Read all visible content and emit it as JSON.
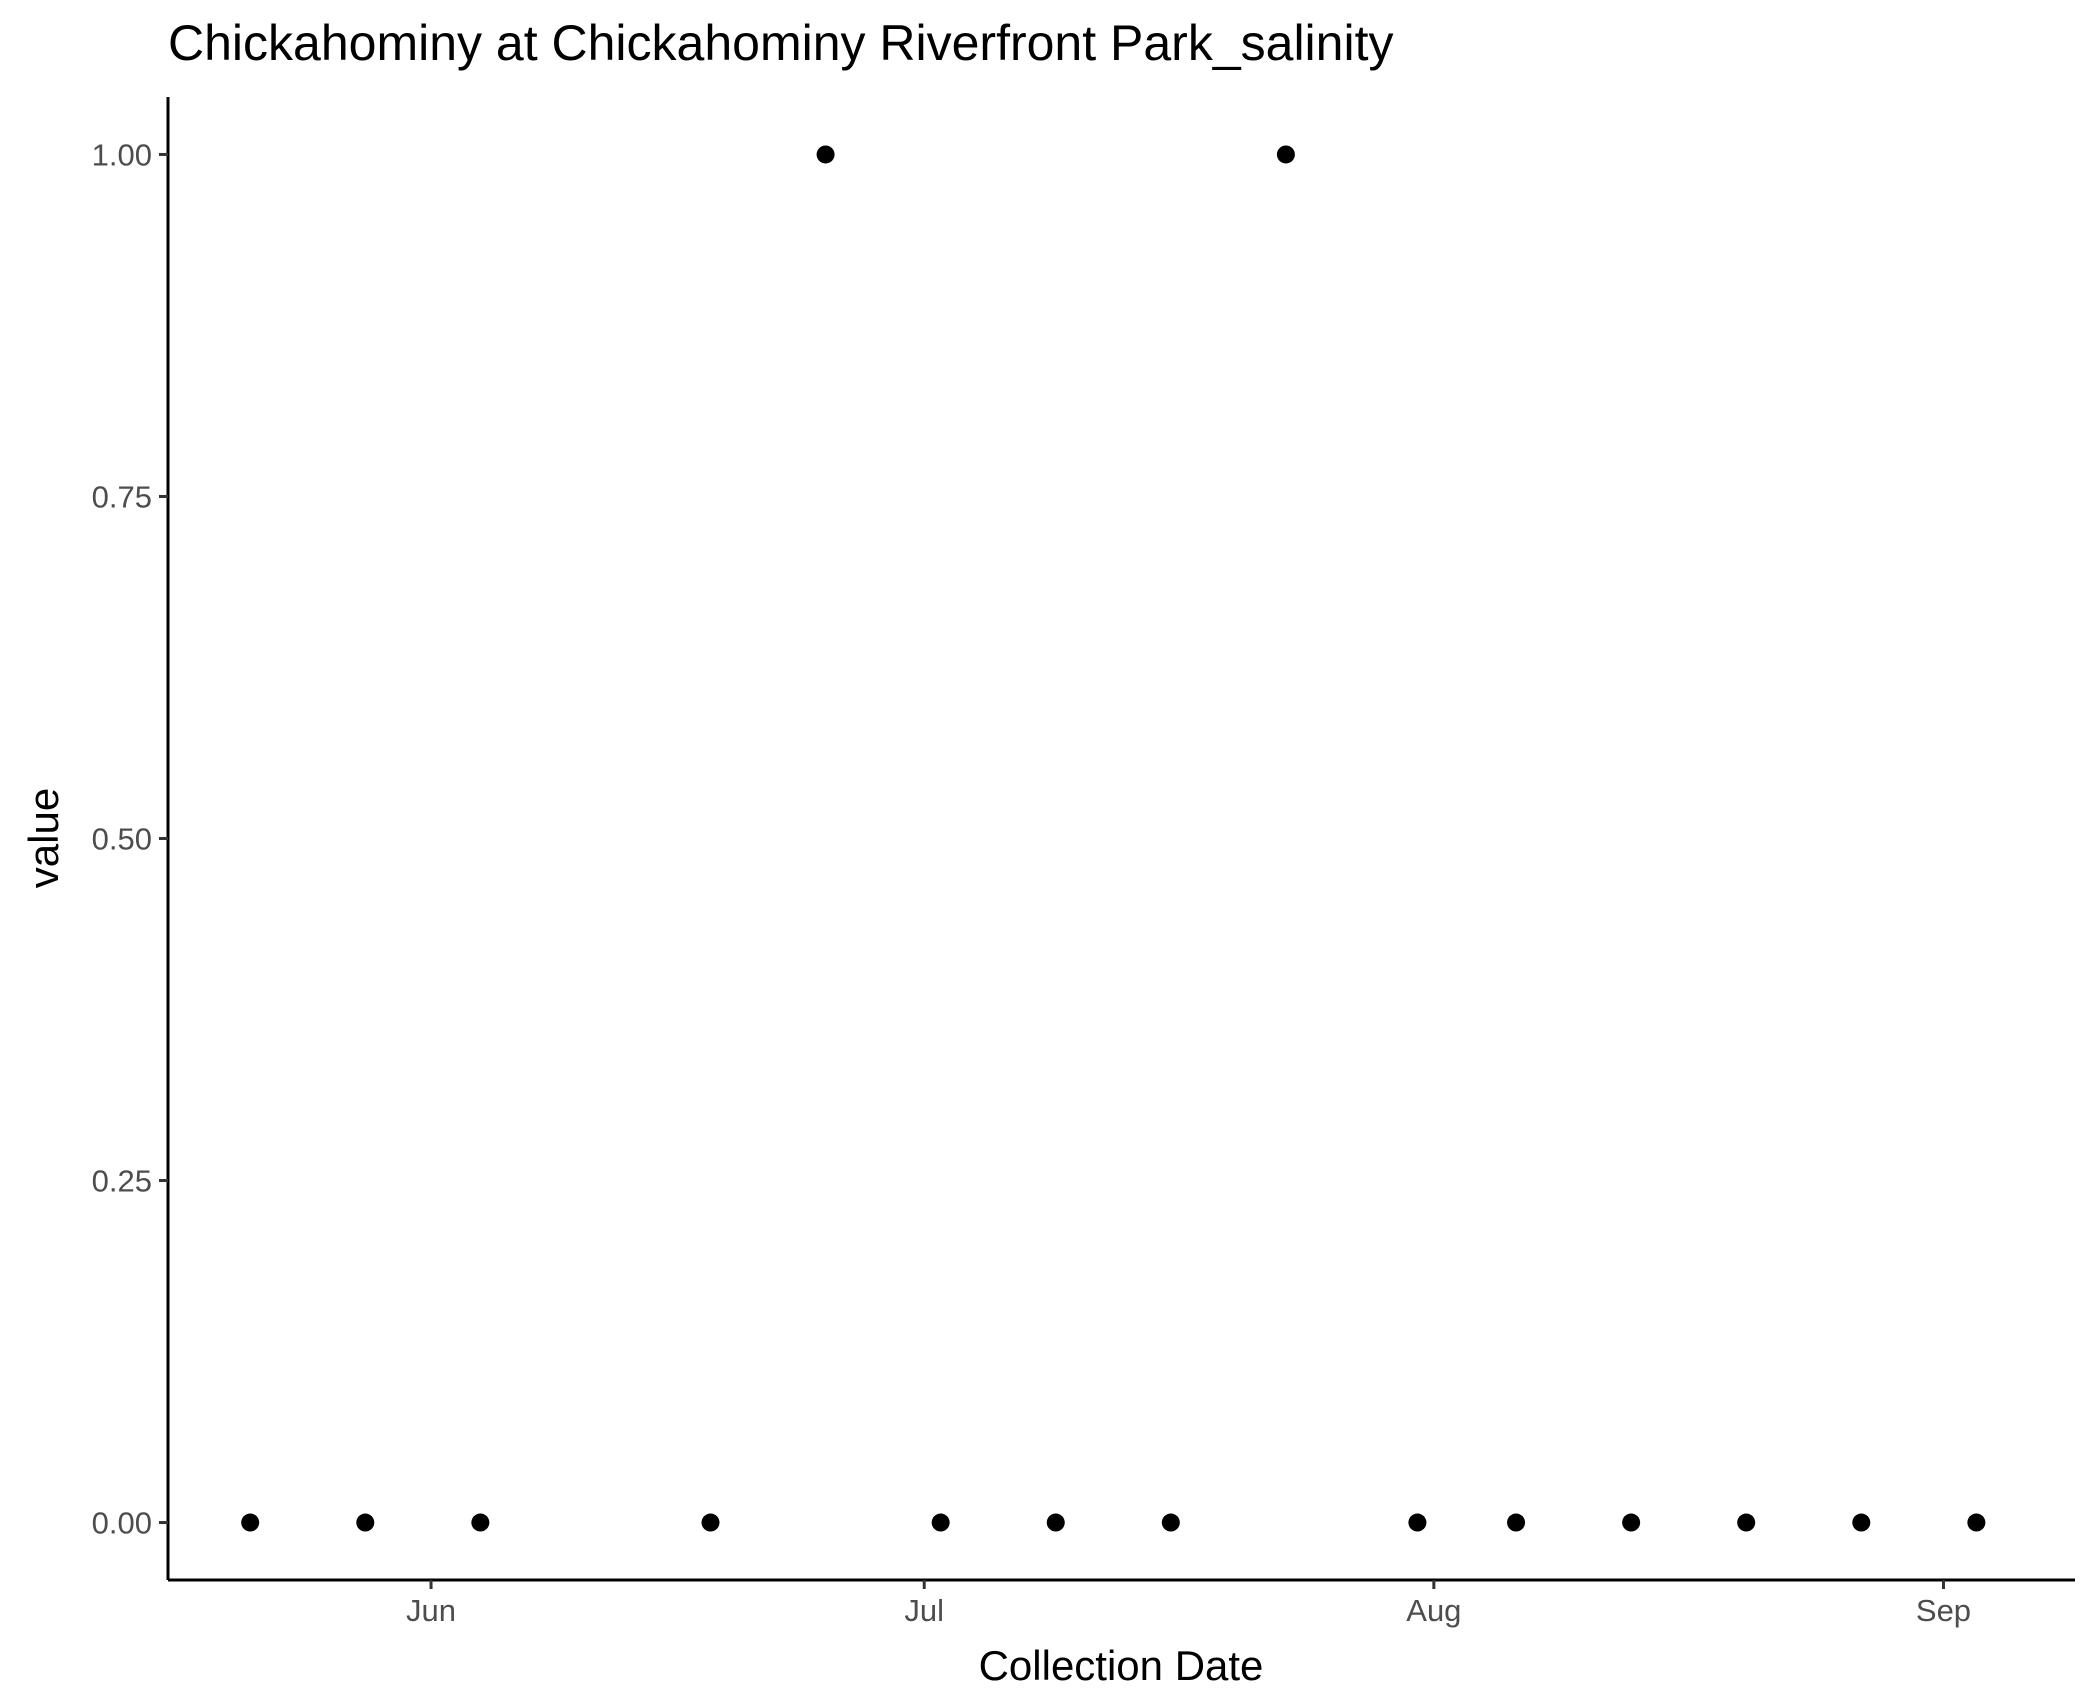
{
  "chart_data": {
    "type": "scatter",
    "title": "Chickahominy at Chickahominy Riverfront Park_salinity",
    "xlabel": "Collection Date",
    "ylabel": "value",
    "x_axis": {
      "type": "date",
      "range": [
        "2019-05-16",
        "2019-09-09"
      ],
      "ticks": [
        {
          "value": "2019-06-01",
          "label": "Jun"
        },
        {
          "value": "2019-07-01",
          "label": "Jul"
        },
        {
          "value": "2019-08-01",
          "label": "Aug"
        },
        {
          "value": "2019-09-01",
          "label": "Sep"
        }
      ]
    },
    "y_axis": {
      "range": [
        -0.042,
        1.042
      ],
      "ticks": [
        {
          "value": 0.0,
          "label": "0.00"
        },
        {
          "value": 0.25,
          "label": "0.25"
        },
        {
          "value": 0.5,
          "label": "0.50"
        },
        {
          "value": 0.75,
          "label": "0.75"
        },
        {
          "value": 1.0,
          "label": "1.00"
        }
      ]
    },
    "grid": false,
    "legend": "none",
    "point_color": "#000000",
    "points": [
      {
        "x": "2019-05-21",
        "y": 0
      },
      {
        "x": "2019-05-28",
        "y": 0
      },
      {
        "x": "2019-06-04",
        "y": 0
      },
      {
        "x": "2019-06-18",
        "y": 0
      },
      {
        "x": "2019-06-25",
        "y": 1
      },
      {
        "x": "2019-07-02",
        "y": 0
      },
      {
        "x": "2019-07-09",
        "y": 0
      },
      {
        "x": "2019-07-16",
        "y": 0
      },
      {
        "x": "2019-07-23",
        "y": 1
      },
      {
        "x": "2019-07-31",
        "y": 0
      },
      {
        "x": "2019-08-06",
        "y": 0
      },
      {
        "x": "2019-08-13",
        "y": 0
      },
      {
        "x": "2019-08-20",
        "y": 0
      },
      {
        "x": "2019-08-27",
        "y": 0
      },
      {
        "x": "2019-09-03",
        "y": 0
      }
    ]
  }
}
